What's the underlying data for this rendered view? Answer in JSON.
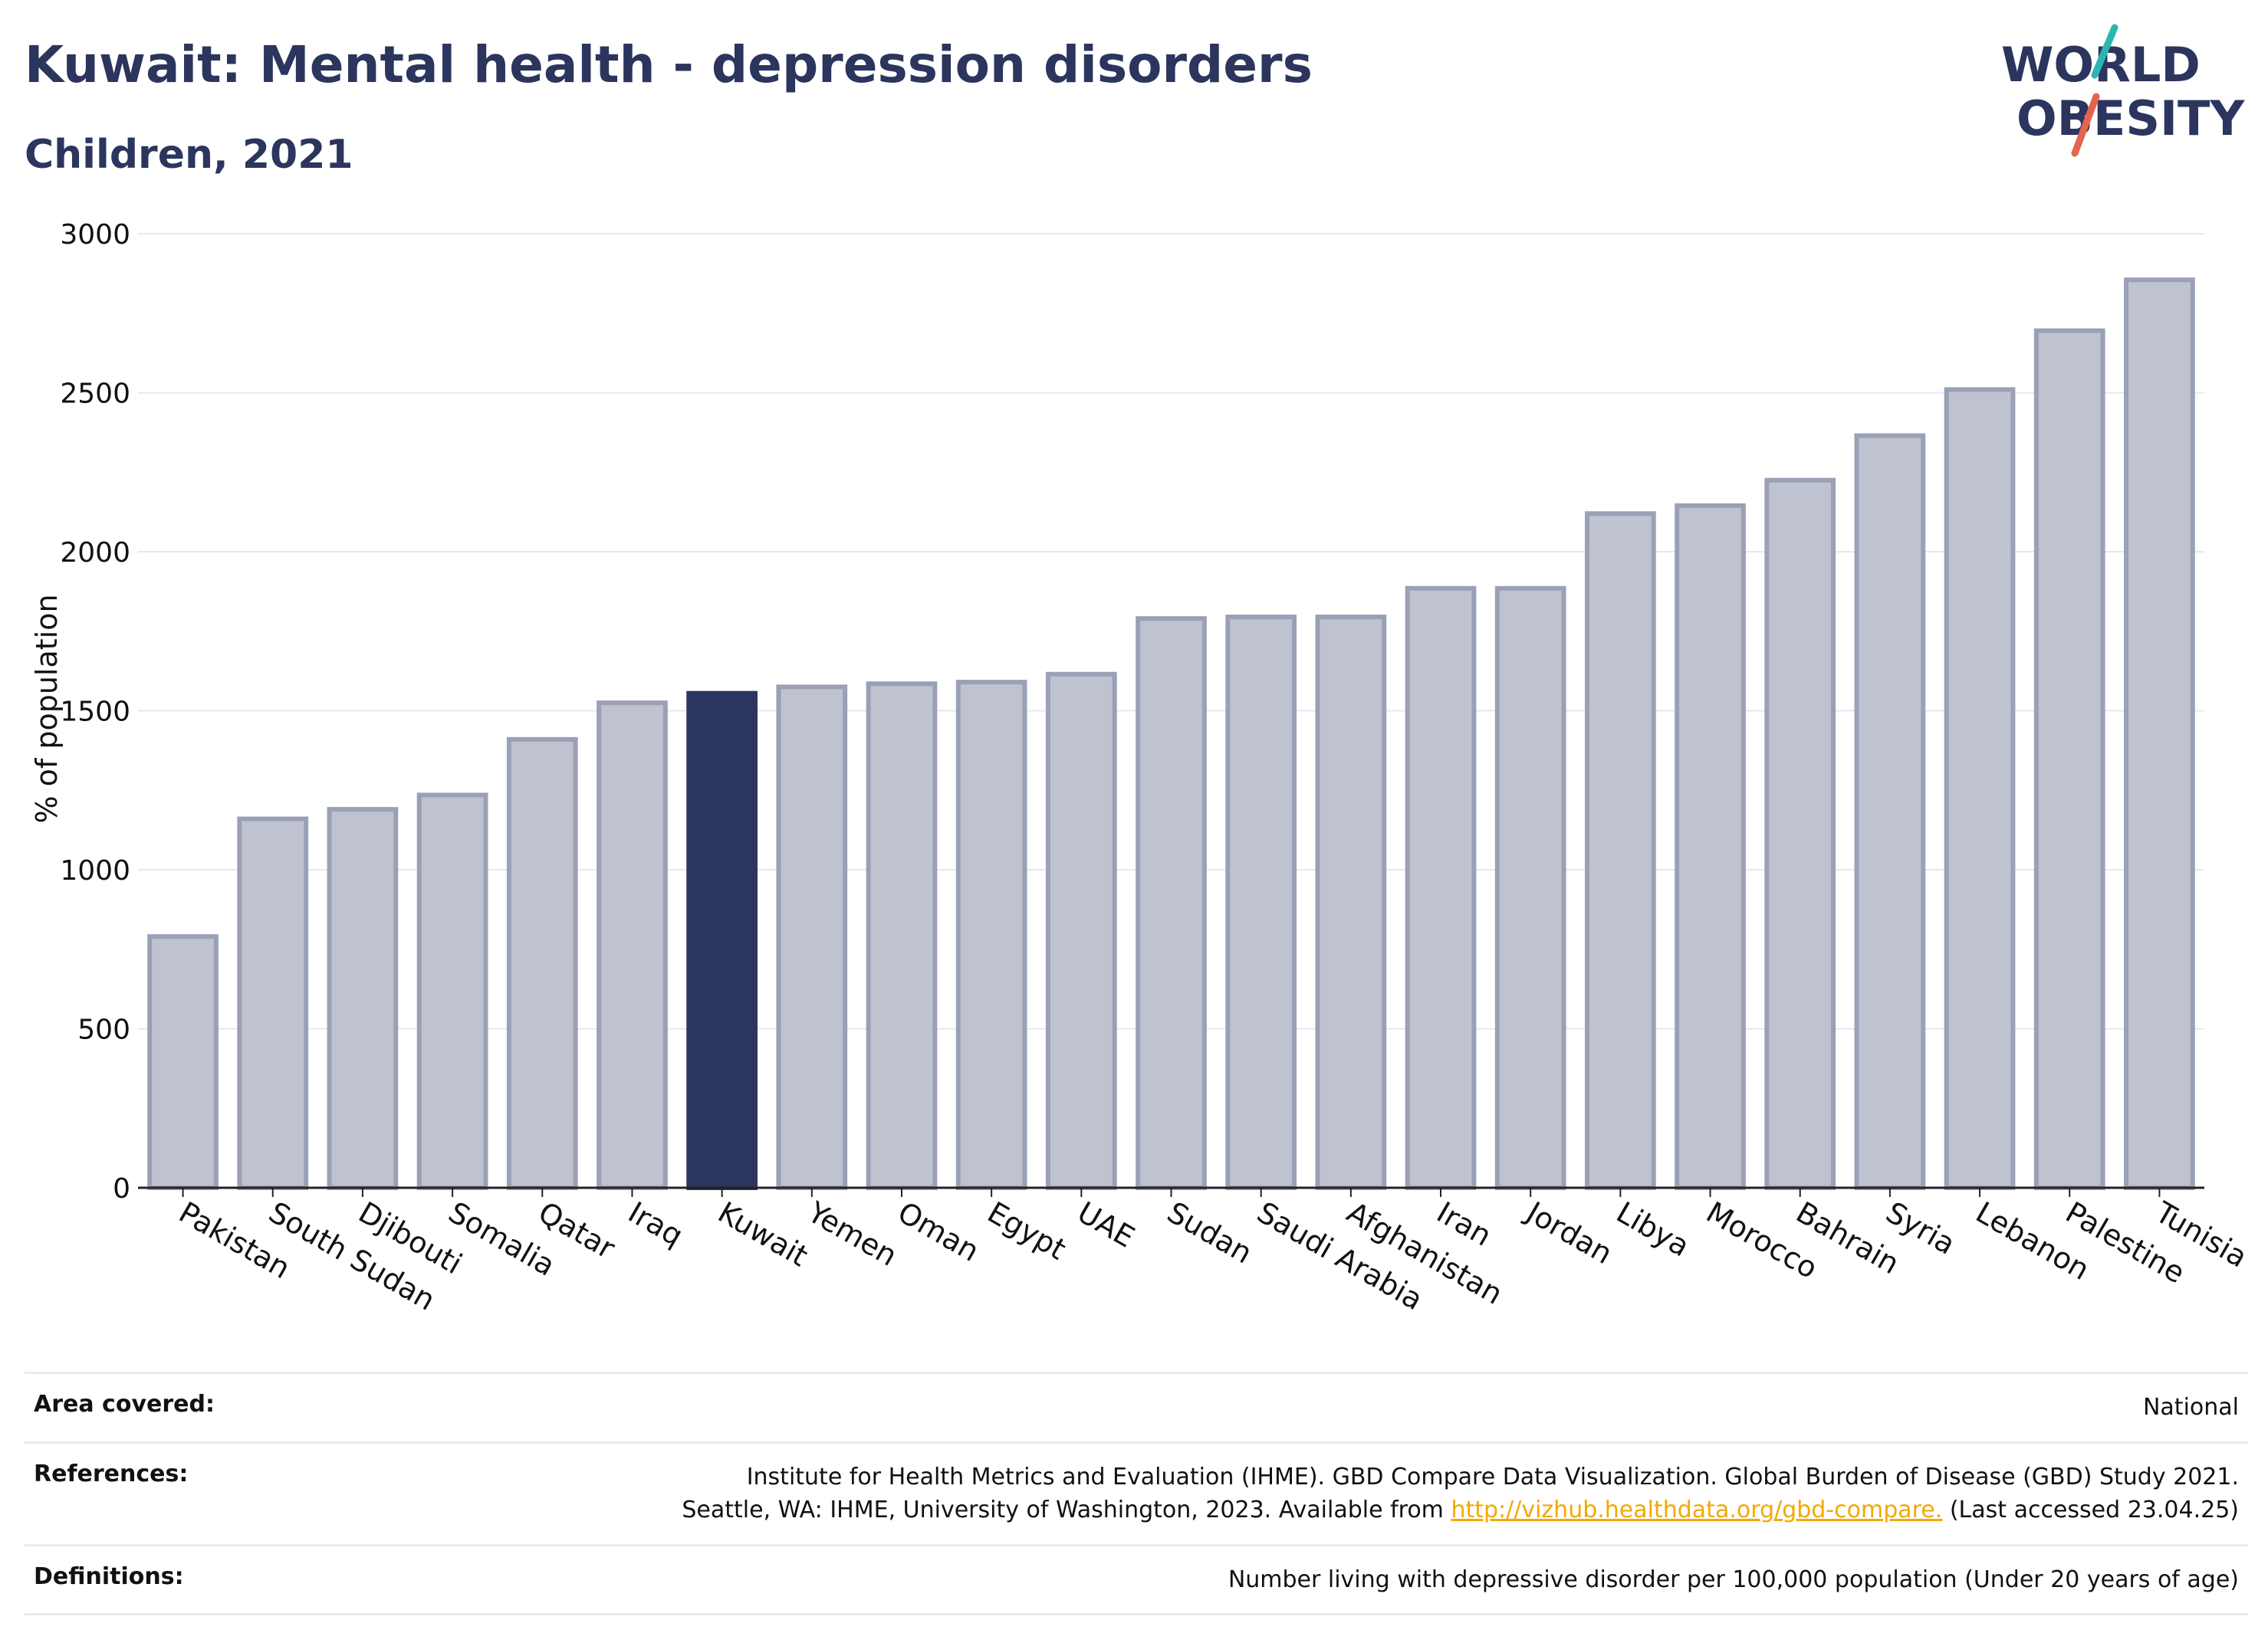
{
  "header": {
    "title": "Kuwait: Mental health - depression disorders",
    "subtitle": "Children, 2021"
  },
  "logo": {
    "line1": "WORLD",
    "line2": "OBESITY",
    "accent_teal": "#2bb6b0",
    "accent_red": "#e4644f"
  },
  "chart_data": {
    "type": "bar",
    "ylabel": "% of population",
    "ylim": [
      0,
      3000
    ],
    "yticks": [
      0,
      500,
      1000,
      1500,
      2000,
      2500,
      3000
    ],
    "grid": true,
    "highlight": "Kuwait",
    "colors": {
      "bar": "#bfc3cf",
      "bar_edge": "#9aa0b5",
      "highlight": "#2b355d"
    },
    "categories": [
      "Pakistan",
      "South Sudan",
      "Djibouti",
      "Somalia",
      "Qatar",
      "Iraq",
      "Kuwait",
      "Yemen",
      "Oman",
      "Egypt",
      "UAE",
      "Sudan",
      "Saudi Arabia",
      "Afghanistan",
      "Iran",
      "Jordan",
      "Libya",
      "Morocco",
      "Bahrain",
      "Syria",
      "Lebanon",
      "Palestine",
      "Tunisia"
    ],
    "values": [
      790,
      1160,
      1190,
      1235,
      1410,
      1525,
      1555,
      1575,
      1585,
      1590,
      1615,
      1790,
      1795,
      1795,
      1885,
      1885,
      2120,
      2145,
      2225,
      2365,
      2510,
      2695,
      2855
    ]
  },
  "footer": {
    "area_label": "Area covered:",
    "area_value": "National",
    "references_label": "References:",
    "references_line1": "Institute for Health Metrics and Evaluation (IHME). GBD Compare Data Visualization. Global Burden of Disease (GBD) Study 2021.",
    "references_line2_pre": "Seattle, WA: IHME, University of Washington, 2023. Available from ",
    "references_link": "http://vizhub.healthdata.org/gbd-compare.",
    "references_line2_post": " (Last accessed 23.04.25)",
    "definitions_label": "Definitions:",
    "definitions_value": "Number living with depressive disorder per 100,000 population (Under 20 years of age)"
  }
}
